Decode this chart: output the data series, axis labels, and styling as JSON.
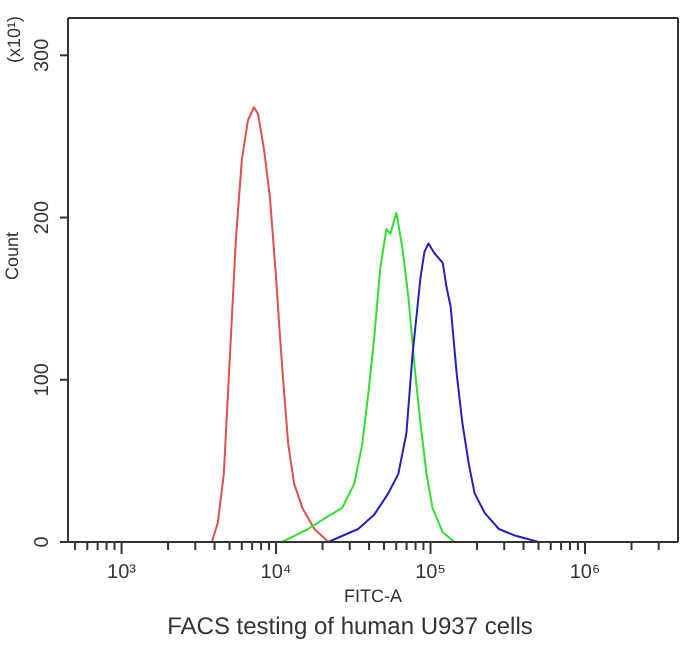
{
  "chart_data": {
    "type": "line",
    "title": "FACS testing of human U937 cells",
    "xlabel": "FITC-A",
    "ylabel": "Count",
    "annotations": [
      "(x10¹)"
    ],
    "log": "x",
    "grid": false,
    "legend": false,
    "marker": "none",
    "line_style": "solid",
    "xlim": [
      450,
      4000000
    ],
    "ylim": [
      0,
      323
    ],
    "xticks": [
      {
        "value": 500,
        "label": null
      },
      {
        "value": 600,
        "label": null
      },
      {
        "value": 700,
        "label": null
      },
      {
        "value": 800,
        "label": null
      },
      {
        "value": 900,
        "label": null
      },
      {
        "value": 1000,
        "label": "10³"
      },
      {
        "value": 2000,
        "label": null
      },
      {
        "value": 3000,
        "label": null
      },
      {
        "value": 4000,
        "label": null
      },
      {
        "value": 5000,
        "label": null
      },
      {
        "value": 6000,
        "label": null
      },
      {
        "value": 7000,
        "label": null
      },
      {
        "value": 8000,
        "label": null
      },
      {
        "value": 9000,
        "label": null
      },
      {
        "value": 10000,
        "label": "10⁴"
      },
      {
        "value": 20000,
        "label": null
      },
      {
        "value": 30000,
        "label": null
      },
      {
        "value": 40000,
        "label": null
      },
      {
        "value": 50000,
        "label": null
      },
      {
        "value": 60000,
        "label": null
      },
      {
        "value": 70000,
        "label": null
      },
      {
        "value": 80000,
        "label": null
      },
      {
        "value": 90000,
        "label": null
      },
      {
        "value": 100000,
        "label": "10⁵"
      },
      {
        "value": 200000,
        "label": null
      },
      {
        "value": 300000,
        "label": null
      },
      {
        "value": 400000,
        "label": null
      },
      {
        "value": 500000,
        "label": null
      },
      {
        "value": 600000,
        "label": null
      },
      {
        "value": 700000,
        "label": null
      },
      {
        "value": 800000,
        "label": null
      },
      {
        "value": 900000,
        "label": null
      },
      {
        "value": 1000000,
        "label": "10⁶"
      },
      {
        "value": 2000000,
        "label": null
      },
      {
        "value": 3000000,
        "label": null
      }
    ],
    "yticks": [
      0,
      100,
      200,
      300
    ],
    "series": [
      {
        "color": "#e05050",
        "x": [
          3840,
          4200,
          4590,
          5030,
          5500,
          6010,
          6580,
          7200,
          7640,
          8360,
          9140,
          10000,
          10600,
          11300,
          12000,
          13100,
          14800,
          17700,
          21800
        ],
        "values": [
          0,
          12,
          42,
          115,
          187,
          236,
          260,
          268,
          264,
          242,
          212,
          163,
          127,
          91,
          60,
          36,
          21,
          8,
          0
        ]
      },
      {
        "color": "#33dd33",
        "x": [
          10940,
          16100,
          21800,
          26800,
          32100,
          36100,
          39500,
          43300,
          47300,
          51800,
          55000,
          60100,
          65800,
          71900,
          78700,
          86100,
          94200,
          103000,
          120000,
          143000
        ],
        "values": [
          0,
          8,
          16,
          21,
          36,
          60,
          91,
          127,
          169,
          193,
          190,
          203,
          181,
          151,
          109,
          73,
          42,
          21,
          6,
          0
        ]
      },
      {
        "color": "#2222bb",
        "x": [
          21800,
          34000,
          43300,
          53300,
          61900,
          69800,
          76400,
          81100,
          86100,
          91400,
          97000,
          106000,
          120000,
          127000,
          135000,
          148000,
          161000,
          177000,
          193000,
          224000,
          277000,
          351000,
          502000
        ],
        "values": [
          0,
          8,
          17,
          30,
          42,
          67,
          115,
          139,
          163,
          179,
          184,
          178,
          172,
          157,
          145,
          103,
          73,
          48,
          30,
          18,
          8,
          4,
          0
        ]
      }
    ]
  }
}
